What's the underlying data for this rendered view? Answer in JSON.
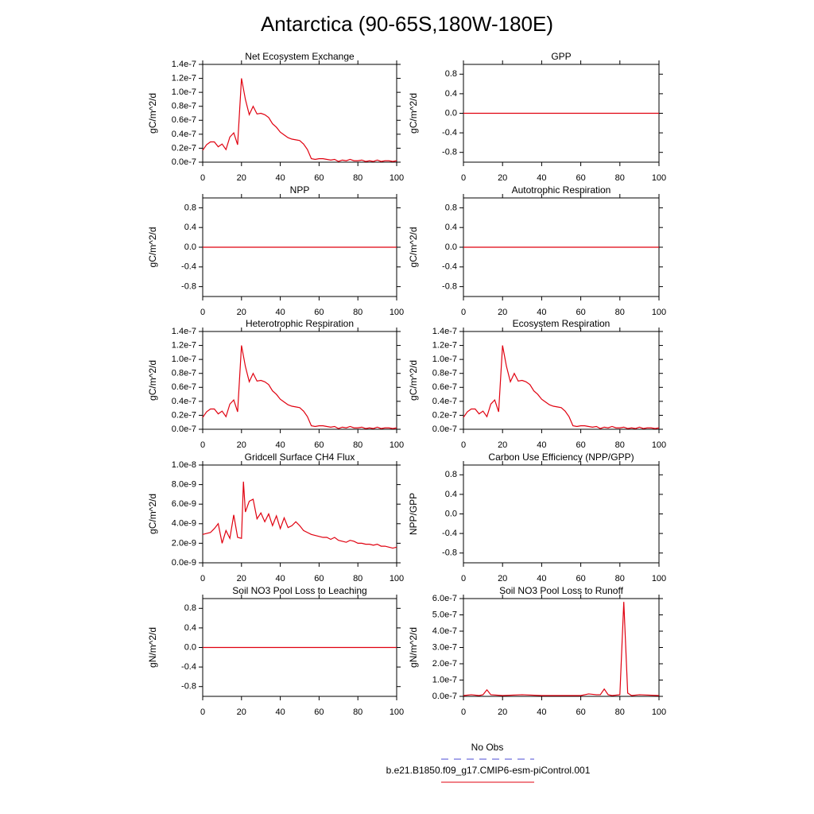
{
  "title": "Antarctica (90-65S,180W-180E)",
  "legend": [
    {
      "name": "No Obs",
      "color": "#4b4bd6",
      "dash": true
    },
    {
      "name": "b.e21.B1850.f09_g17.CMIP6-esm-piControl.001",
      "color": "#e0000f",
      "dash": false
    }
  ],
  "chart_data": [
    {
      "type": "line",
      "title": "Net Ecosystem Exchange",
      "ylabel": "gC/m^2/d",
      "color": "#e0000f",
      "x": [
        0,
        2,
        4,
        6,
        8,
        10,
        12,
        14,
        16,
        18,
        20,
        22,
        24,
        26,
        28,
        30,
        32,
        34,
        36,
        38,
        40,
        42,
        44,
        46,
        48,
        50,
        52,
        54,
        56,
        58,
        60,
        62,
        64,
        66,
        68,
        70,
        72,
        74,
        76,
        78,
        80,
        82,
        84,
        86,
        88,
        90,
        92,
        94,
        96,
        98,
        100
      ],
      "values": [
        1.7e-08,
        2.5e-08,
        2.9e-08,
        2.9e-08,
        2.2e-08,
        2.6e-08,
        1.8e-08,
        3.6e-08,
        4.2e-08,
        2.5e-08,
        1.2e-07,
        9e-08,
        6.8e-08,
        8e-08,
        6.9e-08,
        7e-08,
        6.8e-08,
        6.4e-08,
        5.5e-08,
        5e-08,
        4.3e-08,
        3.9e-08,
        3.5e-08,
        3.3e-08,
        3.2e-08,
        3.1e-08,
        2.6e-08,
        1.8e-08,
        5e-09,
        4e-09,
        5e-09,
        5e-09,
        4e-09,
        3e-09,
        4e-09,
        1e-09,
        3e-09,
        2e-09,
        4e-09,
        2e-09,
        2e-09,
        3e-09,
        1e-09,
        2e-09,
        1e-09,
        3e-09,
        1e-09,
        2e-09,
        2e-09,
        1e-09,
        2e-09
      ],
      "xlim": [
        0,
        100
      ],
      "ylim": [
        0,
        1.4e-07
      ],
      "xticks": [
        0,
        20,
        40,
        60,
        80,
        100
      ],
      "yticks": [
        {
          "value": 0,
          "label": "0.0e-7"
        },
        {
          "value": 2e-08,
          "label": "0.2e-7"
        },
        {
          "value": 4e-08,
          "label": "0.4e-7"
        },
        {
          "value": 6e-08,
          "label": "0.6e-7"
        },
        {
          "value": 8e-08,
          "label": "0.8e-7"
        },
        {
          "value": 1e-07,
          "label": "1.0e-7"
        },
        1.2e-07,
        1.4e-07
      ]
    },
    {
      "type": "line",
      "title": "GPP",
      "ylabel": "gC/m^2/d",
      "color": "#e0000f",
      "x": [
        0,
        100
      ],
      "values": [
        0,
        0
      ],
      "xlim": [
        0,
        100
      ],
      "ylim": [
        -1,
        1
      ],
      "xticks": [
        0,
        20,
        40,
        60,
        80,
        100
      ],
      "yticks": [
        -0.8,
        -0.4,
        {
          "value": 0,
          "label": "0.0"
        },
        0.4,
        0.8
      ]
    },
    {
      "type": "line",
      "title": "NPP",
      "ylabel": "gC/m^2/d",
      "color": "#e0000f",
      "x": [
        0,
        100
      ],
      "values": [
        0,
        0
      ],
      "xlim": [
        0,
        100
      ],
      "ylim": [
        -1,
        1
      ],
      "xticks": [
        0,
        20,
        40,
        60,
        80,
        100
      ],
      "yticks": [
        -0.8,
        -0.4,
        {
          "value": 0,
          "label": "0.0"
        },
        0.4,
        0.8
      ]
    },
    {
      "type": "line",
      "title": "Autotrophic Respiration",
      "ylabel": "gC/m^2/d",
      "color": "#e0000f",
      "x": [
        0,
        100
      ],
      "values": [
        0,
        0
      ],
      "xlim": [
        0,
        100
      ],
      "ylim": [
        -1,
        1
      ],
      "xticks": [
        0,
        20,
        40,
        60,
        80,
        100
      ],
      "yticks": [
        -0.8,
        -0.4,
        {
          "value": 0,
          "label": "0.0"
        },
        0.4,
        0.8
      ]
    },
    {
      "type": "line",
      "title": "Heterotrophic Respiration",
      "ylabel": "gC/m^2/d",
      "color": "#e0000f",
      "x": [
        0,
        2,
        4,
        6,
        8,
        10,
        12,
        14,
        16,
        18,
        20,
        22,
        24,
        26,
        28,
        30,
        32,
        34,
        36,
        38,
        40,
        42,
        44,
        46,
        48,
        50,
        52,
        54,
        56,
        58,
        60,
        62,
        64,
        66,
        68,
        70,
        72,
        74,
        76,
        78,
        80,
        82,
        84,
        86,
        88,
        90,
        92,
        94,
        96,
        98,
        100
      ],
      "values": [
        1.7e-08,
        2.5e-08,
        2.9e-08,
        2.9e-08,
        2.2e-08,
        2.6e-08,
        1.8e-08,
        3.6e-08,
        4.2e-08,
        2.5e-08,
        1.2e-07,
        9e-08,
        6.8e-08,
        8e-08,
        6.9e-08,
        7e-08,
        6.8e-08,
        6.4e-08,
        5.5e-08,
        5e-08,
        4.3e-08,
        3.9e-08,
        3.5e-08,
        3.3e-08,
        3.2e-08,
        3.1e-08,
        2.6e-08,
        1.8e-08,
        5e-09,
        4e-09,
        5e-09,
        5e-09,
        4e-09,
        3e-09,
        4e-09,
        1e-09,
        3e-09,
        2e-09,
        4e-09,
        2e-09,
        2e-09,
        3e-09,
        1e-09,
        2e-09,
        1e-09,
        3e-09,
        1e-09,
        2e-09,
        2e-09,
        1e-09,
        2e-09
      ],
      "xlim": [
        0,
        100
      ],
      "ylim": [
        0,
        1.4e-07
      ],
      "xticks": [
        0,
        20,
        40,
        60,
        80,
        100
      ],
      "yticks": [
        {
          "value": 0,
          "label": "0.0e-7"
        },
        {
          "value": 2e-08,
          "label": "0.2e-7"
        },
        {
          "value": 4e-08,
          "label": "0.4e-7"
        },
        {
          "value": 6e-08,
          "label": "0.6e-7"
        },
        {
          "value": 8e-08,
          "label": "0.8e-7"
        },
        {
          "value": 1e-07,
          "label": "1.0e-7"
        },
        1.2e-07,
        1.4e-07
      ]
    },
    {
      "type": "line",
      "title": "Ecosystem Respiration",
      "ylabel": "gC/m^2/d",
      "color": "#e0000f",
      "x": [
        0,
        2,
        4,
        6,
        8,
        10,
        12,
        14,
        16,
        18,
        20,
        22,
        24,
        26,
        28,
        30,
        32,
        34,
        36,
        38,
        40,
        42,
        44,
        46,
        48,
        50,
        52,
        54,
        56,
        58,
        60,
        62,
        64,
        66,
        68,
        70,
        72,
        74,
        76,
        78,
        80,
        82,
        84,
        86,
        88,
        90,
        92,
        94,
        96,
        98,
        100
      ],
      "values": [
        1.7e-08,
        2.5e-08,
        2.9e-08,
        2.9e-08,
        2.2e-08,
        2.6e-08,
        1.8e-08,
        3.6e-08,
        4.2e-08,
        2.5e-08,
        1.2e-07,
        9e-08,
        6.8e-08,
        8e-08,
        6.9e-08,
        7e-08,
        6.8e-08,
        6.4e-08,
        5.5e-08,
        5e-08,
        4.3e-08,
        3.9e-08,
        3.5e-08,
        3.3e-08,
        3.2e-08,
        3.1e-08,
        2.6e-08,
        1.8e-08,
        5e-09,
        4e-09,
        5e-09,
        5e-09,
        4e-09,
        3e-09,
        4e-09,
        1e-09,
        3e-09,
        2e-09,
        4e-09,
        2e-09,
        2e-09,
        3e-09,
        1e-09,
        2e-09,
        1e-09,
        3e-09,
        1e-09,
        2e-09,
        2e-09,
        1e-09,
        2e-09
      ],
      "xlim": [
        0,
        100
      ],
      "ylim": [
        0,
        1.4e-07
      ],
      "xticks": [
        0,
        20,
        40,
        60,
        80,
        100
      ],
      "yticks": [
        {
          "value": 0,
          "label": "0.0e-7"
        },
        {
          "value": 2e-08,
          "label": "0.2e-7"
        },
        {
          "value": 4e-08,
          "label": "0.4e-7"
        },
        {
          "value": 6e-08,
          "label": "0.6e-7"
        },
        {
          "value": 8e-08,
          "label": "0.8e-7"
        },
        {
          "value": 1e-07,
          "label": "1.0e-7"
        },
        1.2e-07,
        1.4e-07
      ]
    },
    {
      "type": "line",
      "title": "Gridcell Surface CH4 Flux",
      "ylabel": "gC/m^2/d",
      "color": "#e0000f",
      "x": [
        0,
        2,
        4,
        6,
        8,
        10,
        12,
        14,
        16,
        18,
        20,
        21,
        22,
        24,
        26,
        28,
        30,
        32,
        34,
        36,
        38,
        40,
        42,
        44,
        46,
        48,
        50,
        52,
        54,
        56,
        58,
        60,
        62,
        64,
        66,
        68,
        70,
        72,
        74,
        76,
        78,
        80,
        82,
        84,
        86,
        88,
        90,
        92,
        94,
        96,
        98,
        100
      ],
      "values": [
        2.9e-09,
        3e-09,
        3.1e-09,
        3.5e-09,
        4e-09,
        2e-09,
        3.3e-09,
        2.5e-09,
        4.9e-09,
        2.6e-09,
        2.5e-09,
        8.3e-09,
        5.2e-09,
        6.3e-09,
        6.5e-09,
        4.5e-09,
        5.1e-09,
        4.2e-09,
        5e-09,
        3.8e-09,
        4.8e-09,
        3.5e-09,
        4.6e-09,
        3.6e-09,
        3.8e-09,
        4.2e-09,
        3.8e-09,
        3.3e-09,
        3.1e-09,
        2.9e-09,
        2.8e-09,
        2.7e-09,
        2.6e-09,
        2.6e-09,
        2.4e-09,
        2.6e-09,
        2.3e-09,
        2.2e-09,
        2.1e-09,
        2.3e-09,
        2.2e-09,
        2e-09,
        2e-09,
        1.9e-09,
        1.9e-09,
        1.8e-09,
        1.9e-09,
        1.7e-09,
        1.7e-09,
        1.6e-09,
        1.5e-09,
        1.6e-09
      ],
      "xlim": [
        0,
        100
      ],
      "ylim": [
        0,
        1e-08
      ],
      "xticks": [
        0,
        20,
        40,
        60,
        80,
        100
      ],
      "yticks": [
        {
          "value": 0,
          "label": "0.0e-9"
        },
        {
          "value": 2e-09,
          "label": "2.0e-9"
        },
        {
          "value": 4e-09,
          "label": "4.0e-9"
        },
        {
          "value": 6e-09,
          "label": "6.0e-9"
        },
        {
          "value": 8e-09,
          "label": "8.0e-9"
        },
        {
          "value": 1e-08,
          "label": "1.0e-8"
        }
      ]
    },
    {
      "type": "line",
      "title": "Carbon Use Efficiency (NPP/GPP)",
      "ylabel": "NPP/GPP",
      "color": "#e0000f",
      "xlim": [
        0,
        100
      ],
      "ylim": [
        -1,
        1
      ],
      "xticks": [
        0,
        20,
        40,
        60,
        80,
        100
      ],
      "yticks": [
        -0.8,
        -0.4,
        {
          "value": 0,
          "label": "0.0"
        },
        0.4,
        0.8
      ]
    },
    {
      "type": "line",
      "title": "Soil NO3 Pool Loss to Leaching",
      "ylabel": "gN/m^2/d",
      "color": "#e0000f",
      "x": [
        0,
        100
      ],
      "values": [
        0,
        0
      ],
      "xlim": [
        0,
        100
      ],
      "ylim": [
        -1,
        1
      ],
      "xticks": [
        0,
        20,
        40,
        60,
        80,
        100
      ],
      "yticks": [
        -0.8,
        -0.4,
        {
          "value": 0,
          "label": "0.0"
        },
        0.4,
        0.8
      ]
    },
    {
      "type": "line",
      "title": "Soil NO3 Pool Loss to Runoff",
      "ylabel": "gN/m^2/d",
      "color": "#e0000f",
      "x": [
        0,
        4,
        8,
        10,
        12,
        14,
        20,
        30,
        40,
        50,
        60,
        64,
        68,
        70,
        72,
        74,
        76,
        80,
        82,
        84,
        86,
        90,
        100
      ],
      "values": [
        5e-09,
        1e-08,
        5e-09,
        1e-08,
        4e-08,
        1e-08,
        5e-09,
        1e-08,
        5e-09,
        5e-09,
        5e-09,
        1.5e-08,
        1e-08,
        1e-08,
        4.5e-08,
        1e-08,
        5e-09,
        1e-08,
        5.8e-07,
        2e-08,
        5e-09,
        1e-08,
        5e-09
      ],
      "xlim": [
        0,
        100
      ],
      "ylim": [
        0,
        6e-07
      ],
      "xticks": [
        0,
        20,
        40,
        60,
        80,
        100
      ],
      "yticks": [
        {
          "value": 0,
          "label": "0.0e-7"
        },
        {
          "value": 1e-07,
          "label": "1.0e-7"
        },
        {
          "value": 2e-07,
          "label": "2.0e-7"
        },
        {
          "value": 3e-07,
          "label": "3.0e-7"
        },
        {
          "value": 4e-07,
          "label": "4.0e-7"
        },
        {
          "value": 5e-07,
          "label": "5.0e-7"
        },
        {
          "value": 6e-07,
          "label": "6.0e-7"
        }
      ]
    }
  ]
}
